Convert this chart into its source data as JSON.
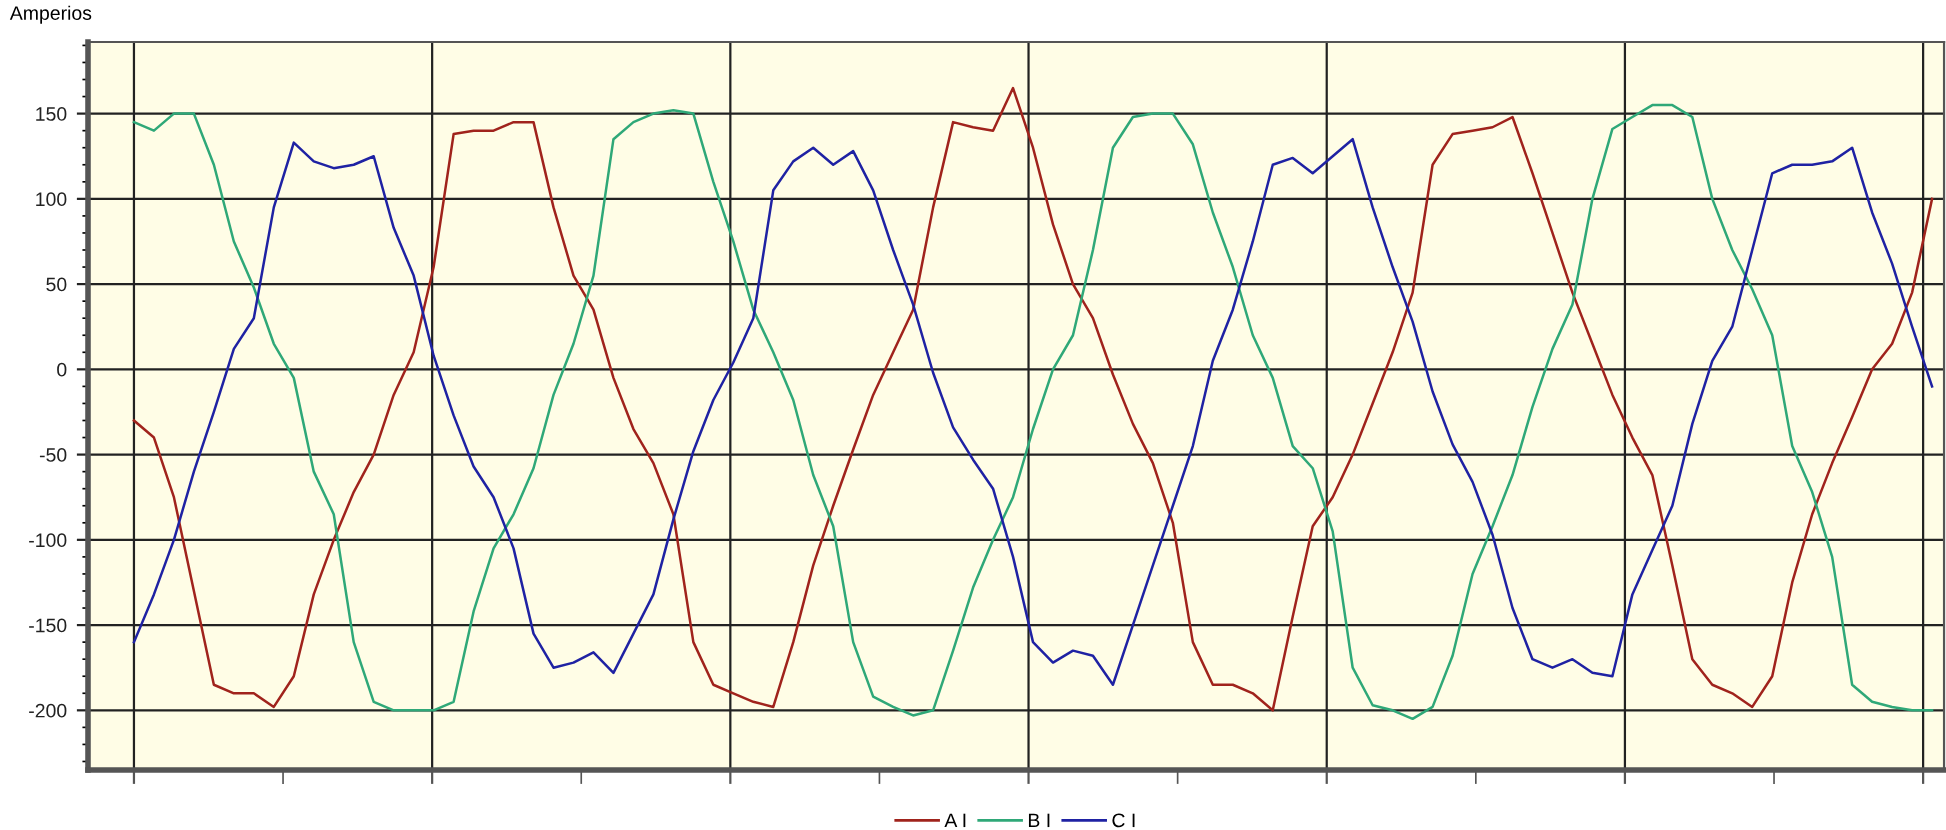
{
  "chart_data": {
    "type": "line",
    "ylabel": "Amperios",
    "categories": [
      null,
      null,
      null,
      null,
      null,
      null,
      null,
      null,
      null,
      null,
      null,
      null,
      null,
      null,
      null,
      null,
      null,
      null,
      null,
      null,
      null,
      null,
      null,
      null,
      null,
      null,
      null,
      null,
      null,
      null,
      null,
      null,
      null,
      null,
      null,
      null,
      null,
      null,
      null,
      null,
      null,
      null,
      null,
      null,
      null,
      null,
      null,
      null,
      null,
      null,
      null,
      null,
      null,
      null,
      null,
      null,
      null,
      null,
      null,
      null,
      null,
      null,
      null,
      null,
      null,
      null,
      null,
      null,
      null,
      null,
      null,
      null,
      null,
      null,
      null,
      null,
      null,
      null,
      null,
      null,
      null,
      null,
      null,
      null,
      null,
      null,
      null,
      null,
      null,
      null,
      null
    ],
    "series": [
      {
        "name": "A I",
        "color": "#a0231c",
        "values": [
          -30,
          -40,
          -75,
          -130,
          -185,
          -190,
          -190,
          -198,
          -180,
          -132,
          -100,
          -72,
          -50,
          -15,
          10,
          60,
          138,
          140,
          140,
          145,
          145,
          95,
          55,
          35,
          -5,
          -35,
          -55,
          -85,
          -160,
          -185,
          -190,
          -195,
          -198,
          -160,
          -115,
          -80,
          -47,
          -15,
          10,
          35,
          95,
          145,
          142,
          140,
          165,
          130,
          85,
          50,
          30,
          -3,
          -32,
          -55,
          -90,
          -160,
          -185,
          -185,
          -190,
          -200,
          -145,
          -92,
          -75,
          -50,
          -20,
          10,
          45,
          120,
          138,
          140,
          142,
          148,
          115,
          80,
          45,
          15,
          -15,
          -40,
          -62,
          -115,
          -170,
          -185,
          -190,
          -198,
          -180,
          -125,
          -85,
          -55,
          -28,
          0,
          15,
          45,
          100
        ]
      },
      {
        "name": "B I",
        "color": "#2fa878",
        "values": [
          145,
          140,
          150,
          150,
          120,
          75,
          48,
          15,
          -5,
          -60,
          -85,
          -160,
          -195,
          -200,
          -200,
          -200,
          -195,
          -142,
          -105,
          -85,
          -58,
          -15,
          15,
          55,
          135,
          145,
          150,
          152,
          150,
          110,
          75,
          35,
          10,
          -18,
          -62,
          -92,
          -160,
          -192,
          -198,
          -203,
          -200,
          -165,
          -128,
          -100,
          -75,
          -35,
          0,
          20,
          70,
          130,
          148,
          150,
          150,
          132,
          92,
          60,
          20,
          -5,
          -45,
          -58,
          -95,
          -175,
          -197,
          -200,
          -205,
          -198,
          -168,
          -120,
          -92,
          -62,
          -22,
          12,
          38,
          100,
          141,
          148,
          155,
          155,
          148,
          100,
          70,
          47,
          20,
          -45,
          -72,
          -110,
          -185,
          -195,
          -198,
          -200,
          -200
        ]
      },
      {
        "name": "C I",
        "color": "#1f22a3",
        "values": [
          -160,
          -132,
          -100,
          -60,
          -25,
          12,
          30,
          95,
          133,
          122,
          118,
          120,
          125,
          83,
          55,
          8,
          -27,
          -57,
          -75,
          -105,
          -155,
          -175,
          -172,
          -166,
          -178,
          -155,
          -132,
          -88,
          -48,
          -18,
          4,
          30,
          105,
          122,
          130,
          120,
          128,
          105,
          70,
          38,
          -2,
          -34,
          -53,
          -70,
          -110,
          -160,
          -172,
          -165,
          -168,
          -185,
          -150,
          -115,
          -80,
          -45,
          5,
          35,
          75,
          120,
          124,
          115,
          125,
          135,
          95,
          60,
          28,
          -13,
          -44,
          -66,
          -97,
          -140,
          -170,
          -175,
          -170,
          -178,
          -180,
          -132,
          -106,
          -80,
          -32,
          5,
          25,
          70,
          115,
          120,
          120,
          122,
          130,
          92,
          62,
          25,
          -10
        ]
      }
    ],
    "ylim": [
      -235,
      192
    ],
    "yticks": [
      -200,
      -150,
      -100,
      -50,
      0,
      50,
      100,
      150
    ],
    "grid": true,
    "legend": "bottom",
    "marker": "none",
    "line_style": "solid"
  }
}
